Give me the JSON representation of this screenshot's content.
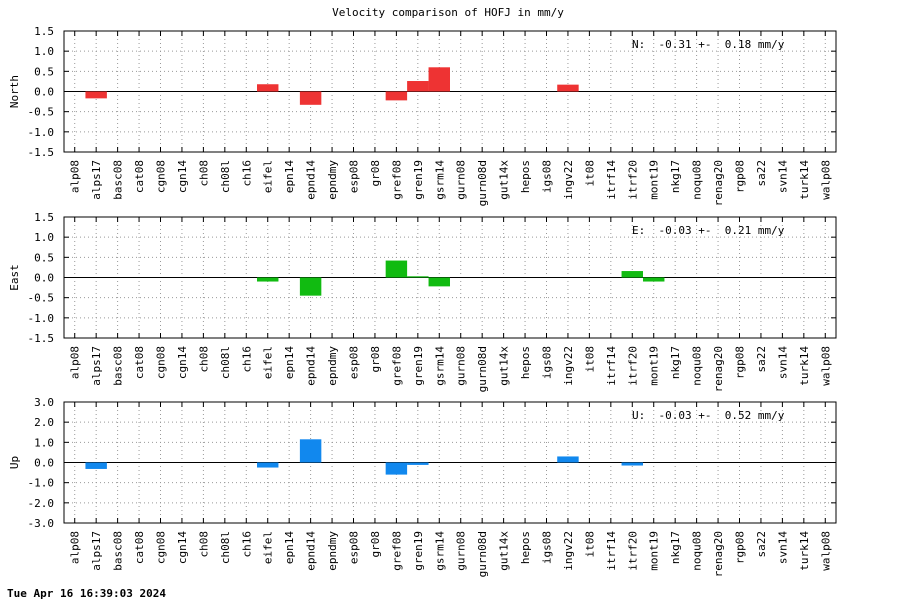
{
  "title": "Velocity comparison of HOFJ in mm/y",
  "timestamp": "Tue Apr 16 16:39:03 2024",
  "chart_data": [
    {
      "type": "bar",
      "ylabel": "North",
      "ylim": [
        -1.5,
        1.5
      ],
      "yticks": [
        "1.5",
        "1.0",
        "0.5",
        "0.0",
        "-0.5",
        "-1.0",
        "-1.5"
      ],
      "color": "#ee3333",
      "annotation": "N:  -0.31 +-  0.18 mm/y",
      "categories": [
        "alp08",
        "alps17",
        "basc08",
        "cat08",
        "cgn08",
        "cgn14",
        "ch08",
        "ch08l",
        "ch16",
        "eifel",
        "epn14",
        "epnd14",
        "epndmy",
        "esp08",
        "gr08",
        "gref08",
        "gren19",
        "gsrm14",
        "gurn08",
        "gurn08d",
        "gut14x",
        "hepos",
        "igs08",
        "ingv22",
        "it08",
        "itrf14",
        "itrf20",
        "mont19",
        "nkg17",
        "noqu08",
        "renag20",
        "rgp08",
        "sa22",
        "svn14",
        "turk14",
        "walp08"
      ],
      "values": [
        0,
        -0.17,
        0,
        0,
        0,
        0,
        0,
        0,
        0,
        0.18,
        0,
        -0.33,
        0,
        0,
        0,
        -0.22,
        0.26,
        0.6,
        0,
        0,
        0,
        0,
        0,
        0.17,
        0,
        0,
        0,
        0,
        0,
        0,
        0,
        0,
        0,
        0,
        0,
        0
      ],
      "grid": true
    },
    {
      "type": "bar",
      "ylabel": "East",
      "ylim": [
        -1.5,
        1.5
      ],
      "yticks": [
        "1.5",
        "1.0",
        "0.5",
        "0.0",
        "-0.5",
        "-1.0",
        "-1.5"
      ],
      "color": "#11bb11",
      "annotation": "E:  -0.03 +-  0.21 mm/y",
      "categories": [
        "alp08",
        "alps17",
        "basc08",
        "cat08",
        "cgn08",
        "cgn14",
        "ch08",
        "ch08l",
        "ch16",
        "eifel",
        "epn14",
        "epnd14",
        "epndmy",
        "esp08",
        "gr08",
        "gref08",
        "gren19",
        "gsrm14",
        "gurn08",
        "gurn08d",
        "gut14x",
        "hepos",
        "igs08",
        "ingv22",
        "it08",
        "itrf14",
        "itrf20",
        "mont19",
        "nkg17",
        "noqu08",
        "renag20",
        "rgp08",
        "sa22",
        "svn14",
        "turk14",
        "walp08"
      ],
      "values": [
        0,
        0,
        0,
        0,
        0,
        0,
        0,
        0,
        0,
        -0.1,
        0,
        -0.45,
        0,
        0,
        0,
        0.42,
        0.03,
        -0.22,
        0,
        0,
        0,
        0,
        0,
        0,
        0,
        0,
        0.16,
        -0.1,
        0,
        0,
        0,
        0,
        0,
        0,
        0,
        0
      ],
      "grid": true
    },
    {
      "type": "bar",
      "ylabel": "Up",
      "ylim": [
        -3.0,
        3.0
      ],
      "yticks": [
        "3.0",
        "2.0",
        "1.0",
        "0.0",
        "-1.0",
        "-2.0",
        "-3.0"
      ],
      "color": "#1188ee",
      "annotation": "U:  -0.03 +-  0.52 mm/y",
      "categories": [
        "alp08",
        "alps17",
        "basc08",
        "cat08",
        "cgn08",
        "cgn14",
        "ch08",
        "ch08l",
        "ch16",
        "eifel",
        "epn14",
        "epnd14",
        "epndmy",
        "esp08",
        "gr08",
        "gref08",
        "gren19",
        "gsrm14",
        "gurn08",
        "gurn08d",
        "gut14x",
        "hepos",
        "igs08",
        "ingv22",
        "it08",
        "itrf14",
        "itrf20",
        "mont19",
        "nkg17",
        "noqu08",
        "renag20",
        "rgp08",
        "sa22",
        "svn14",
        "turk14",
        "walp08"
      ],
      "values": [
        0,
        -0.32,
        0,
        0,
        0,
        0,
        0,
        0,
        0,
        -0.25,
        0,
        1.15,
        0,
        0,
        0,
        -0.6,
        -0.12,
        0,
        0,
        0,
        0,
        0,
        0,
        0.3,
        0,
        0,
        -0.15,
        0,
        0,
        0,
        0,
        0,
        0,
        0,
        0,
        0
      ],
      "grid": true
    }
  ]
}
